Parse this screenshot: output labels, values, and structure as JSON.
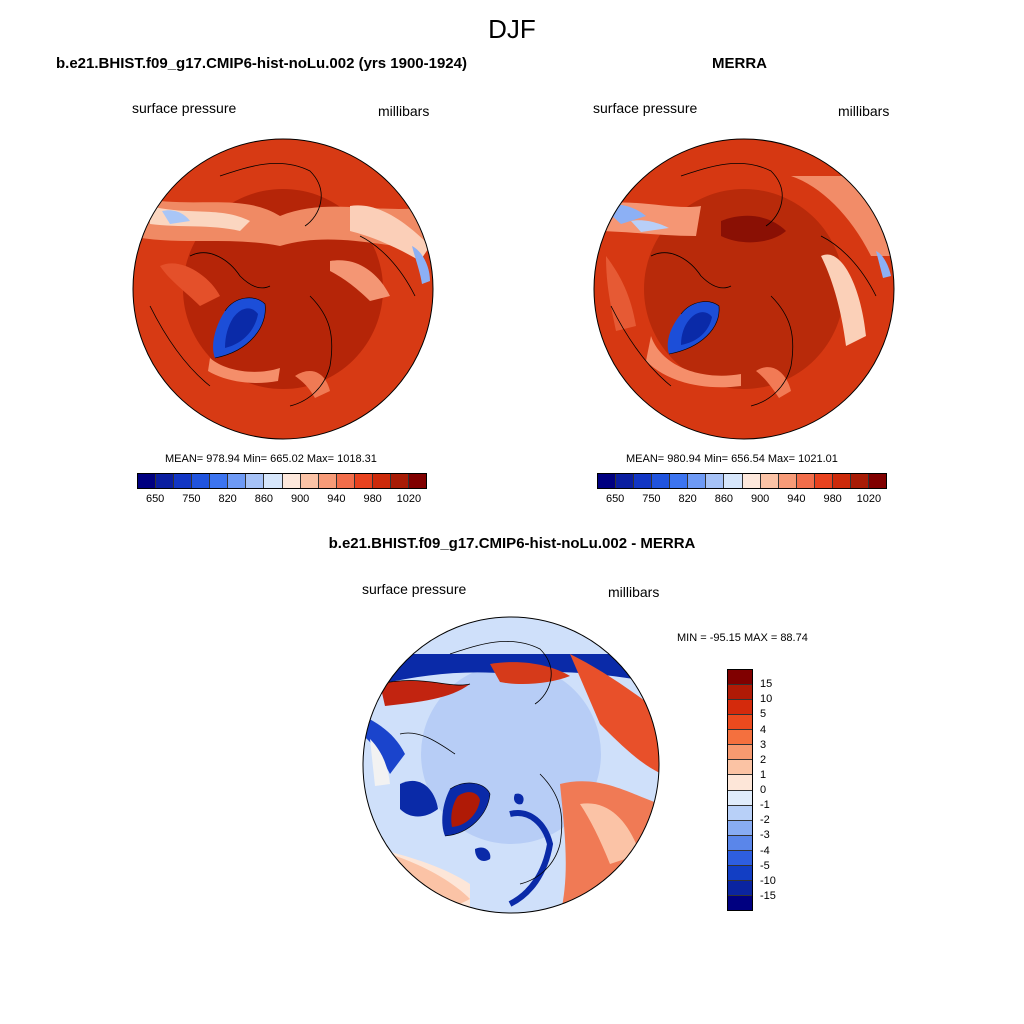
{
  "title": "DJF",
  "panels": [
    {
      "header": "b.e21.BHIST.f09_g17.CMIP6-hist-noLu.002 (yrs 1900-1924)",
      "left_label": "surface pressure",
      "right_label": "millibars",
      "stats": "MEAN= 978.94  Min= 665.02  Max= 1018.31"
    },
    {
      "header": "MERRA",
      "left_label": "surface pressure",
      "right_label": "millibars",
      "stats": "MEAN= 980.94  Min= 656.54  Max= 1021.01"
    },
    {
      "header": "b.e21.BHIST.f09_g17.CMIP6-hist-noLu.002 - MERRA",
      "left_label": "surface pressure",
      "right_label": "millibars",
      "stats": "MIN = -95.15 MAX =  88.74"
    }
  ],
  "colorbar_abs": {
    "colors": [
      "#000080",
      "#0a1ea0",
      "#1236c4",
      "#2154de",
      "#3c74f0",
      "#6e9af5",
      "#a6c2f7",
      "#d6e6fb",
      "#fde8dc",
      "#fbc3a6",
      "#f79b78",
      "#f26d4a",
      "#e8421e",
      "#cc2a0a",
      "#a81c06",
      "#800000"
    ],
    "tick_labels": [
      "650",
      "750",
      "820",
      "860",
      "900",
      "940",
      "980",
      "1020"
    ]
  },
  "colorbar_diff": {
    "colors": [
      "#800000",
      "#b01a06",
      "#d42a0c",
      "#ec4a1e",
      "#f4703e",
      "#f79a70",
      "#fbc3a4",
      "#fde6d8",
      "#e0ecfb",
      "#b8d0f8",
      "#88acf3",
      "#5a86ea",
      "#2e5ee0",
      "#123ec4",
      "#0a24a0",
      "#000080"
    ],
    "tick_labels": [
      "15",
      "10",
      "5",
      "4",
      "3",
      "2",
      "1",
      "0",
      "-1",
      "-2",
      "-3",
      "-4",
      "-5",
      "-10",
      "-15"
    ]
  }
}
